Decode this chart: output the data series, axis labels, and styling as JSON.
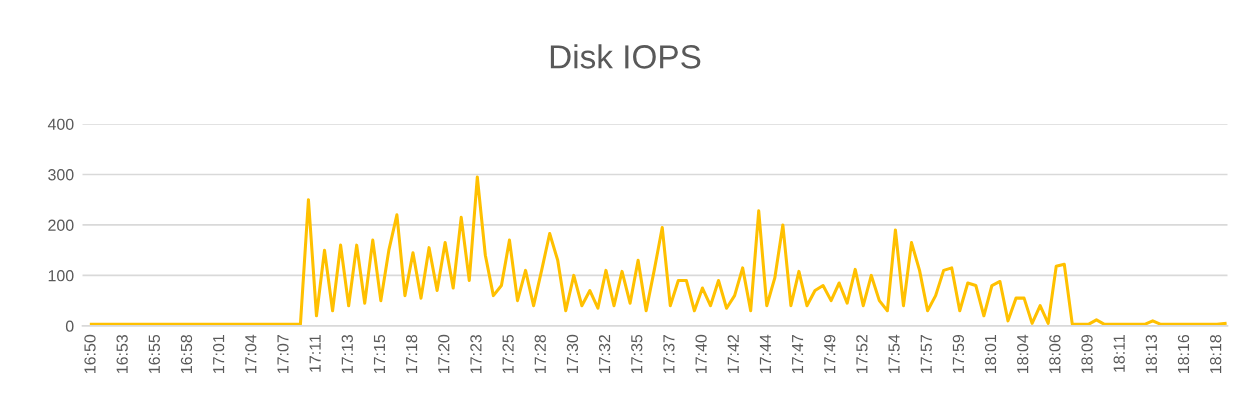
{
  "chart_data": {
    "type": "line",
    "title": "Disk IOPS",
    "categories": [
      "16:50",
      null,
      null,
      null,
      "16:53",
      null,
      null,
      null,
      "16:55",
      null,
      null,
      null,
      "16:58",
      null,
      null,
      null,
      "17:01",
      null,
      null,
      null,
      "17:04",
      null,
      null,
      null,
      "17:07",
      null,
      null,
      null,
      "17:11",
      null,
      null,
      null,
      "17:13",
      null,
      null,
      null,
      "17:15",
      null,
      null,
      null,
      "17:18",
      null,
      null,
      null,
      "17:20",
      null,
      null,
      null,
      "17:23",
      null,
      null,
      null,
      "17:25",
      null,
      null,
      null,
      "17:28",
      null,
      null,
      null,
      "17:30",
      null,
      null,
      null,
      "17:32",
      null,
      null,
      null,
      "17:35",
      null,
      null,
      null,
      "17:37",
      null,
      null,
      null,
      "17:40",
      null,
      null,
      null,
      "17:42",
      null,
      null,
      null,
      "17:44",
      null,
      null,
      null,
      "17:47",
      null,
      null,
      null,
      "17:49",
      null,
      null,
      null,
      "17:52",
      null,
      null,
      null,
      "17:54",
      null,
      null,
      null,
      "17:57",
      null,
      null,
      null,
      "17:59",
      null,
      null,
      null,
      "18:01",
      null,
      null,
      null,
      "18:04",
      null,
      null,
      null,
      "18:06",
      null,
      null,
      null,
      "18:09",
      null,
      null,
      null,
      "18:11",
      null,
      null,
      null,
      "18:13",
      null,
      null,
      null,
      "18:16",
      null,
      null,
      null,
      "18:18",
      null
    ],
    "series": [
      {
        "color": "#ffc000",
        "values": [
          3,
          3,
          3,
          3,
          3,
          3,
          3,
          3,
          3,
          3,
          3,
          3,
          3,
          3,
          3,
          3,
          3,
          3,
          3,
          3,
          3,
          3,
          3,
          3,
          3,
          3,
          3,
          250,
          20,
          150,
          30,
          160,
          40,
          160,
          45,
          170,
          50,
          150,
          220,
          60,
          145,
          55,
          155,
          70,
          165,
          75,
          215,
          90,
          295,
          140,
          60,
          80,
          170,
          50,
          110,
          40,
          110,
          183,
          130,
          30,
          100,
          40,
          70,
          35,
          110,
          40,
          108,
          45,
          130,
          30,
          110,
          195,
          40,
          90,
          90,
          30,
          75,
          40,
          90,
          35,
          60,
          115,
          30,
          228,
          40,
          95,
          200,
          40,
          108,
          40,
          70,
          80,
          50,
          85,
          45,
          112,
          40,
          100,
          50,
          30,
          190,
          40,
          165,
          110,
          30,
          60,
          110,
          115,
          30,
          85,
          80,
          20,
          80,
          88,
          10,
          55,
          55,
          5,
          40,
          5,
          118,
          122,
          3,
          3,
          3,
          12,
          3,
          3,
          3,
          3,
          3,
          3,
          10,
          3,
          3,
          3,
          3,
          3,
          3,
          3,
          3,
          5
        ]
      }
    ],
    "ylim": [
      0,
      400
    ],
    "yticks": [
      0,
      100,
      200,
      300,
      400
    ],
    "grid": "y",
    "line_style": "solid",
    "marker": "none",
    "legend": false
  }
}
